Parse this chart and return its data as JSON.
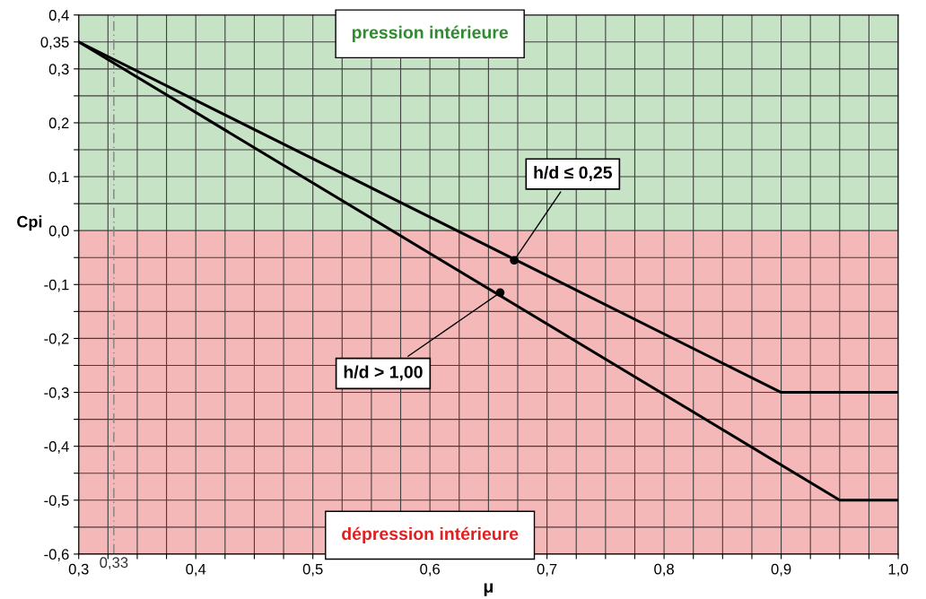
{
  "chart_data": {
    "type": "line",
    "xlabel": "μ",
    "ylabel": "Cpi",
    "series": [
      {
        "color": "#000000",
        "x": [
          0.3,
          0.9,
          1.0
        ],
        "values": [
          0.35,
          -0.3,
          -0.3
        ]
      },
      {
        "color": "#000000",
        "x": [
          0.3,
          0.95,
          1.0
        ],
        "values": [
          0.35,
          -0.5,
          -0.5
        ]
      }
    ],
    "xlim": [
      0.3,
      1.0
    ],
    "ylim": [
      -0.6,
      0.4
    ],
    "xticks": [
      {
        "value": 0.3,
        "label": "0,3"
      },
      {
        "value": 0.325,
        "label": null
      },
      {
        "value": 0.35,
        "label": null
      },
      {
        "value": 0.375,
        "label": null
      },
      {
        "value": 0.4,
        "label": "0,4"
      },
      {
        "value": 0.425,
        "label": null
      },
      {
        "value": 0.45,
        "label": null
      },
      {
        "value": 0.475,
        "label": null
      },
      {
        "value": 0.5,
        "label": "0,5"
      },
      {
        "value": 0.525,
        "label": null
      },
      {
        "value": 0.55,
        "label": null
      },
      {
        "value": 0.575,
        "label": null
      },
      {
        "value": 0.6,
        "label": "0,6"
      },
      {
        "value": 0.625,
        "label": null
      },
      {
        "value": 0.65,
        "label": null
      },
      {
        "value": 0.675,
        "label": null
      },
      {
        "value": 0.7,
        "label": "0,7"
      },
      {
        "value": 0.725,
        "label": null
      },
      {
        "value": 0.75,
        "label": null
      },
      {
        "value": 0.775,
        "label": null
      },
      {
        "value": 0.8,
        "label": "0,8"
      },
      {
        "value": 0.825,
        "label": null
      },
      {
        "value": 0.85,
        "label": null
      },
      {
        "value": 0.875,
        "label": null
      },
      {
        "value": 0.9,
        "label": "0,9"
      },
      {
        "value": 0.925,
        "label": null
      },
      {
        "value": 0.95,
        "label": null
      },
      {
        "value": 0.975,
        "label": null
      },
      {
        "value": 1.0,
        "label": "1,0"
      }
    ],
    "yticks": [
      {
        "value": -0.6,
        "label": "-0,6"
      },
      {
        "value": -0.55,
        "label": null
      },
      {
        "value": -0.5,
        "label": "-0,5"
      },
      {
        "value": -0.45,
        "label": null
      },
      {
        "value": -0.4,
        "label": "-0,4"
      },
      {
        "value": -0.35,
        "label": null
      },
      {
        "value": -0.3,
        "label": "-0,3"
      },
      {
        "value": -0.25,
        "label": null
      },
      {
        "value": -0.2,
        "label": "-0,2"
      },
      {
        "value": -0.15,
        "label": null
      },
      {
        "value": -0.1,
        "label": "-0,1"
      },
      {
        "value": -0.05,
        "label": null
      },
      {
        "value": 0.0,
        "label": "0,0"
      },
      {
        "value": 0.05,
        "label": null
      },
      {
        "value": 0.1,
        "label": "0,1"
      },
      {
        "value": 0.15,
        "label": null
      },
      {
        "value": 0.2,
        "label": "0,2"
      },
      {
        "value": 0.25,
        "label": null
      },
      {
        "value": 0.3,
        "label": "0,3"
      },
      {
        "value": 0.35,
        "label": "0,35"
      },
      {
        "value": 0.4,
        "label": "0,4"
      }
    ],
    "grid": true,
    "marker": "none",
    "line_style": "solid",
    "bands": [
      {
        "axis": "y",
        "from": 0.0,
        "to": 0.4,
        "label": "pression intérieure",
        "color": "#c6e3c6"
      },
      {
        "axis": "y",
        "from": -0.6,
        "to": 0.0,
        "label": "dépression intérieure",
        "color": "#f5b8b8"
      }
    ],
    "ref_lines": [
      {
        "axis": "x",
        "value": 0.33,
        "label": "0,33",
        "color": "#808080",
        "line_style": "dashed"
      }
    ],
    "annotations": [
      {
        "text": "h/d ≤ 0,25",
        "x": 0.672,
        "y": -0.055
      },
      {
        "text": "h/d > 1,00",
        "x": 0.66,
        "y": -0.115
      }
    ]
  }
}
